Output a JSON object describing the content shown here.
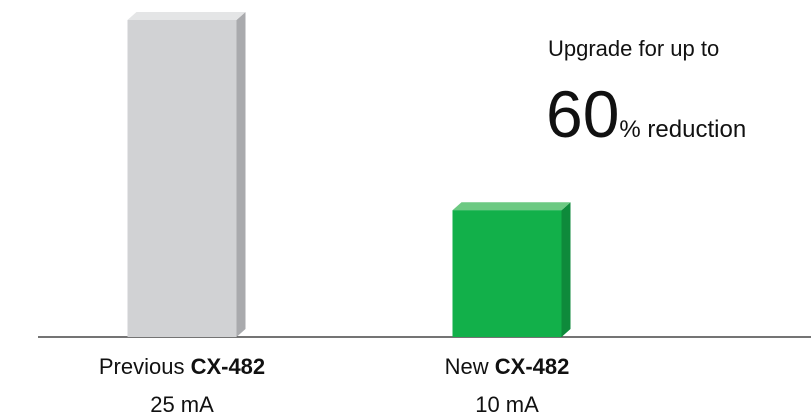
{
  "chart_data": {
    "type": "bar",
    "categories": [
      {
        "label": "Previous",
        "model": "CX-482"
      },
      {
        "label": "New",
        "model": "CX-482"
      }
    ],
    "values": [
      25,
      10
    ],
    "value_labels": [
      "25 mA",
      "10 mA"
    ],
    "colors": [
      "#d1d2d4",
      "#12b04a"
    ],
    "side_colors": [
      "#a9aaad",
      "#0e8a3b"
    ],
    "top_colors": [
      "#e4e5e6",
      "#6cc982"
    ],
    "annotation": {
      "intro": "Upgrade for up to",
      "value": 60,
      "suffix": "% reduction"
    }
  }
}
